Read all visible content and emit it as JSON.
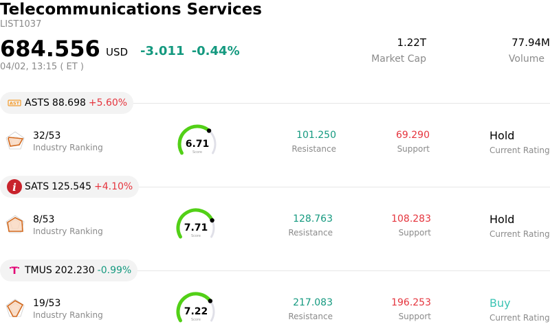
{
  "header": {
    "title": "Telecommunications Services",
    "code": "LIST1037",
    "price": "684.556",
    "currency": "USD",
    "change": "-3.011",
    "change_pct": "-0.44%",
    "timestamp": "04/02, 13:15  ( ET )",
    "market_cap_value": "1.22T",
    "market_cap_label": "Market Cap",
    "volume_value": "77.94M",
    "volume_label": "Volume"
  },
  "labels": {
    "industry_ranking": "Industry Ranking",
    "resistance": "Resistance",
    "support": "Support",
    "current_rating": "Current Rating",
    "score": "Score"
  },
  "stocks": [
    {
      "ticker": "ASTS",
      "price": "88.698",
      "change_pct": "+5.60%",
      "rank": "32/53",
      "score": "6.71",
      "score_value": 6.71,
      "resistance": "101.250",
      "support": "69.290",
      "rating": "Hold",
      "logo_text": "AST"
    },
    {
      "ticker": "SATS",
      "price": "125.545",
      "change_pct": "+4.10%",
      "rank": "8/53",
      "score": "7.71",
      "score_value": 7.71,
      "resistance": "128.763",
      "support": "108.283",
      "rating": "Hold",
      "logo_text": "i"
    },
    {
      "ticker": "TMUS",
      "price": "202.230",
      "change_pct": "-0.99%",
      "rank": "19/53",
      "score": "7.22",
      "score_value": 7.22,
      "resistance": "217.083",
      "support": "196.253",
      "rating": "Buy",
      "logo_text": "T"
    }
  ],
  "colors": {
    "up": "#e5343d",
    "down": "#14997f",
    "gauge_fill": "#52d017",
    "gauge_track": "#e0e0e8",
    "buy": "#3cc4b4"
  }
}
